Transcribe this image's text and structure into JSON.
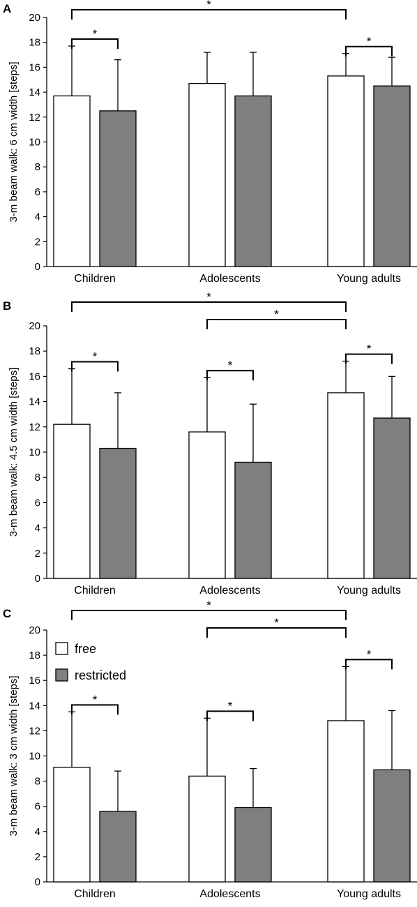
{
  "chart_data": [
    {
      "type": "bar",
      "panel_label": "A",
      "ylabel": "3-m beam walk: 6 cm width [steps]",
      "ylim": [
        0,
        20
      ],
      "yticks": [
        0,
        2,
        4,
        6,
        8,
        10,
        12,
        14,
        16,
        18,
        20
      ],
      "categories": [
        "Children",
        "Adolescents",
        "Young adults"
      ],
      "series": [
        {
          "name": "free",
          "color": "#ffffff",
          "values": [
            13.7,
            14.7,
            15.3
          ],
          "errors": [
            4.0,
            2.5,
            1.8
          ]
        },
        {
          "name": "restricted",
          "color": "#7f7f7f",
          "values": [
            12.5,
            13.7,
            14.5
          ],
          "errors": [
            4.1,
            3.5,
            2.3
          ]
        }
      ],
      "significance": [
        {
          "label": "*",
          "from": [
            0,
            0
          ],
          "to": [
            0,
            1
          ]
        },
        {
          "label": "*",
          "from": [
            2,
            0
          ],
          "to": [
            2,
            1
          ]
        },
        {
          "label": "*",
          "from": [
            0,
            0
          ],
          "to": [
            2,
            0
          ]
        }
      ],
      "legend": null
    },
    {
      "type": "bar",
      "panel_label": "B",
      "ylabel": "3-m beam walk: 4.5 cm width [steps]",
      "ylim": [
        0,
        20
      ],
      "yticks": [
        0,
        2,
        4,
        6,
        8,
        10,
        12,
        14,
        16,
        18,
        20
      ],
      "categories": [
        "Children",
        "Adolescents",
        "Young adults"
      ],
      "series": [
        {
          "name": "free",
          "color": "#ffffff",
          "values": [
            12.2,
            11.6,
            14.7
          ],
          "errors": [
            4.4,
            4.3,
            2.5
          ]
        },
        {
          "name": "restricted",
          "color": "#7f7f7f",
          "values": [
            10.3,
            9.2,
            12.7
          ],
          "errors": [
            4.4,
            4.6,
            3.3
          ]
        }
      ],
      "significance": [
        {
          "label": "*",
          "from": [
            0,
            0
          ],
          "to": [
            0,
            1
          ]
        },
        {
          "label": "*",
          "from": [
            1,
            0
          ],
          "to": [
            1,
            1
          ]
        },
        {
          "label": "*",
          "from": [
            2,
            0
          ],
          "to": [
            2,
            1
          ]
        },
        {
          "label": "*",
          "from": [
            1,
            0
          ],
          "to": [
            2,
            0
          ]
        },
        {
          "label": "*",
          "from": [
            0,
            0
          ],
          "to": [
            2,
            0
          ]
        }
      ],
      "legend": null
    },
    {
      "type": "bar",
      "panel_label": "C",
      "ylabel": "3-m beam walk: 3 cm width [steps]",
      "ylim": [
        0,
        20
      ],
      "yticks": [
        0,
        2,
        4,
        6,
        8,
        10,
        12,
        14,
        16,
        18,
        20
      ],
      "categories": [
        "Children",
        "Adolescents",
        "Young adults"
      ],
      "series": [
        {
          "name": "free",
          "color": "#ffffff",
          "values": [
            9.1,
            8.4,
            12.8
          ],
          "errors": [
            4.4,
            4.6,
            4.3
          ]
        },
        {
          "name": "restricted",
          "color": "#7f7f7f",
          "values": [
            5.6,
            5.9,
            8.9
          ],
          "errors": [
            3.2,
            3.1,
            4.7
          ]
        }
      ],
      "significance": [
        {
          "label": "*",
          "from": [
            0,
            0
          ],
          "to": [
            0,
            1
          ]
        },
        {
          "label": "*",
          "from": [
            1,
            0
          ],
          "to": [
            1,
            1
          ]
        },
        {
          "label": "*",
          "from": [
            2,
            0
          ],
          "to": [
            2,
            1
          ]
        },
        {
          "label": "*",
          "from": [
            1,
            0
          ],
          "to": [
            2,
            0
          ]
        },
        {
          "label": "*",
          "from": [
            0,
            0
          ],
          "to": [
            2,
            0
          ]
        }
      ],
      "legend": {
        "placement": "top-left",
        "entries": [
          "free",
          "restricted"
        ]
      }
    }
  ]
}
